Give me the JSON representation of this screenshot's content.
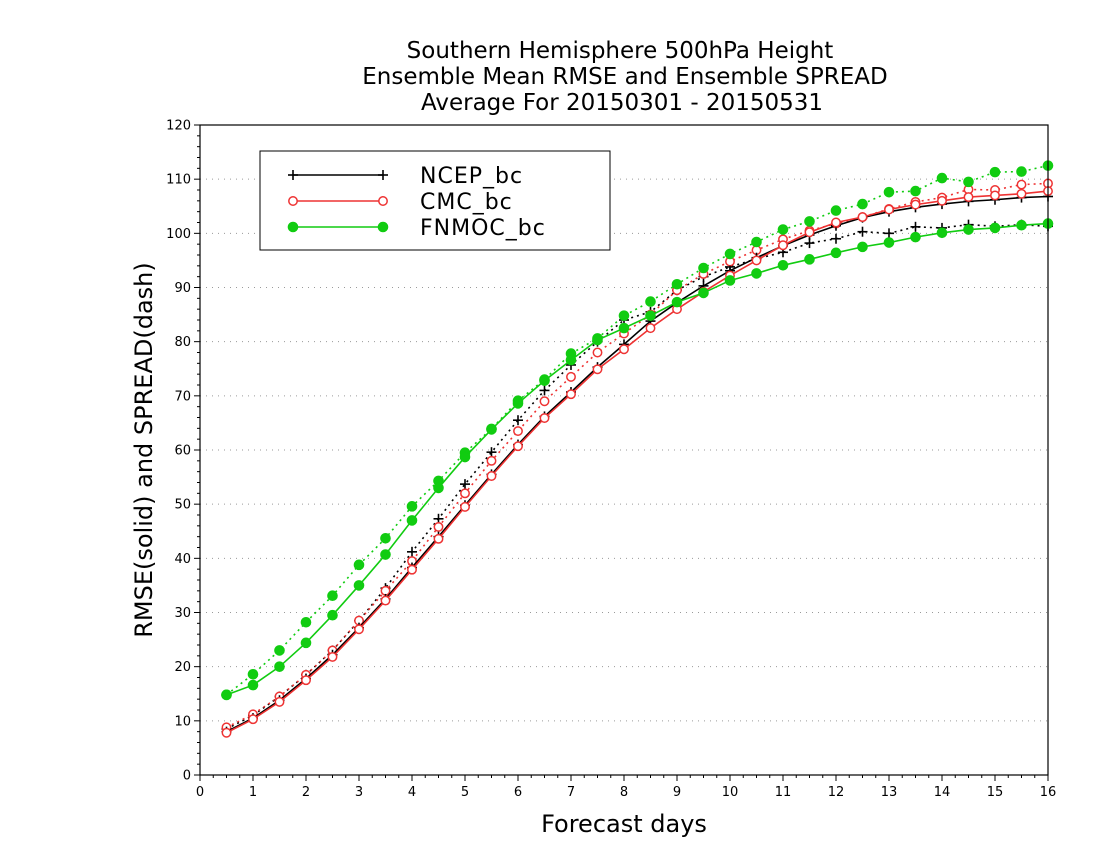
{
  "chart_data": {
    "type": "line",
    "title": [
      "Southern Hemisphere 500hPa Height",
      "Ensemble Mean RMSE and Ensemble SPREAD",
      "Average For 20150301 - 20150531"
    ],
    "xlabel": "Forecast days",
    "ylabel": "RMSE(solid) and SPREAD(dash)",
    "xlim": [
      0,
      16
    ],
    "ylim": [
      0,
      120
    ],
    "xticks": [
      0,
      1,
      2,
      3,
      4,
      5,
      6,
      7,
      8,
      9,
      10,
      11,
      12,
      13,
      14,
      15,
      16
    ],
    "yticks": [
      0,
      10,
      20,
      30,
      40,
      50,
      60,
      70,
      80,
      90,
      100,
      110,
      120
    ],
    "grid": true,
    "legend_position": "top-left",
    "x": [
      0.5,
      1,
      1.5,
      2,
      2.5,
      3,
      3.5,
      4,
      4.5,
      5,
      5.5,
      6,
      6.5,
      7,
      7.5,
      8,
      8.5,
      9,
      9.5,
      10,
      10.5,
      11,
      11.5,
      12,
      12.5,
      13,
      13.5,
      14,
      14.5,
      15,
      15.5,
      16
    ],
    "series": [
      {
        "name": "NCEP_bc",
        "color": "#000000",
        "marker": "plus",
        "rmse": [
          8.0,
          10.5,
          13.8,
          17.8,
          22.2,
          27.2,
          32.5,
          38.3,
          44.0,
          49.8,
          55.5,
          61.0,
          66.2,
          70.7,
          75.3,
          79.5,
          83.8,
          87.2,
          90.3,
          93.1,
          95.5,
          97.7,
          99.7,
          101.4,
          102.9,
          104.0,
          104.8,
          105.4,
          105.9,
          106.2,
          106.6,
          106.8
        ],
        "spread": [
          8.5,
          11.0,
          14.5,
          18.5,
          23.0,
          28.5,
          34.5,
          41.2,
          47.3,
          53.7,
          59.6,
          65.5,
          71.0,
          75.7,
          80.0,
          84.0,
          85.5,
          89.5,
          92.0,
          93.8,
          95.3,
          96.5,
          98.2,
          99.0,
          100.3,
          100.0,
          101.2,
          101.0,
          101.6,
          101.3,
          101.6,
          101.3
        ]
      },
      {
        "name": "CMC_bc",
        "color": "#ee3333",
        "marker": "circle-open",
        "rmse": [
          7.8,
          10.3,
          13.5,
          17.5,
          21.8,
          26.9,
          32.2,
          37.9,
          43.6,
          49.5,
          55.2,
          60.7,
          65.9,
          70.3,
          74.9,
          78.6,
          82.5,
          86.0,
          89.2,
          92.2,
          95.0,
          97.8,
          100.2,
          102.0,
          103.0,
          104.4,
          105.3,
          106.0,
          106.7,
          107.0,
          107.3,
          107.8
        ],
        "spread": [
          8.8,
          11.2,
          14.5,
          18.5,
          23.0,
          28.5,
          34.0,
          39.5,
          45.8,
          52.0,
          58.0,
          63.5,
          69.0,
          73.5,
          78.0,
          81.5,
          85.0,
          89.5,
          92.5,
          94.8,
          96.9,
          98.9,
          100.5,
          101.8,
          103.0,
          104.5,
          105.8,
          106.6,
          108.1,
          108.0,
          109.0,
          109.2
        ]
      },
      {
        "name": "FNMOC_bc",
        "color": "#11cc11",
        "marker": "circle-filled",
        "rmse": [
          14.8,
          16.6,
          20.0,
          24.4,
          29.5,
          35.0,
          40.7,
          47.0,
          53.0,
          58.7,
          63.8,
          68.6,
          72.8,
          76.6,
          80.3,
          82.5,
          84.8,
          87.3,
          89.0,
          91.3,
          92.6,
          94.1,
          95.2,
          96.4,
          97.5,
          98.3,
          99.3,
          100.1,
          100.7,
          101.0,
          101.5,
          101.8
        ],
        "spread": [
          14.8,
          18.6,
          23.0,
          28.2,
          33.1,
          38.8,
          43.7,
          49.6,
          54.3,
          59.5,
          63.9,
          69.1,
          73.0,
          77.8,
          80.6,
          84.8,
          87.4,
          90.6,
          93.6,
          96.2,
          98.4,
          100.7,
          102.2,
          104.2,
          105.4,
          107.6,
          107.8,
          110.2,
          109.5,
          111.3,
          111.4,
          112.5
        ]
      }
    ]
  }
}
